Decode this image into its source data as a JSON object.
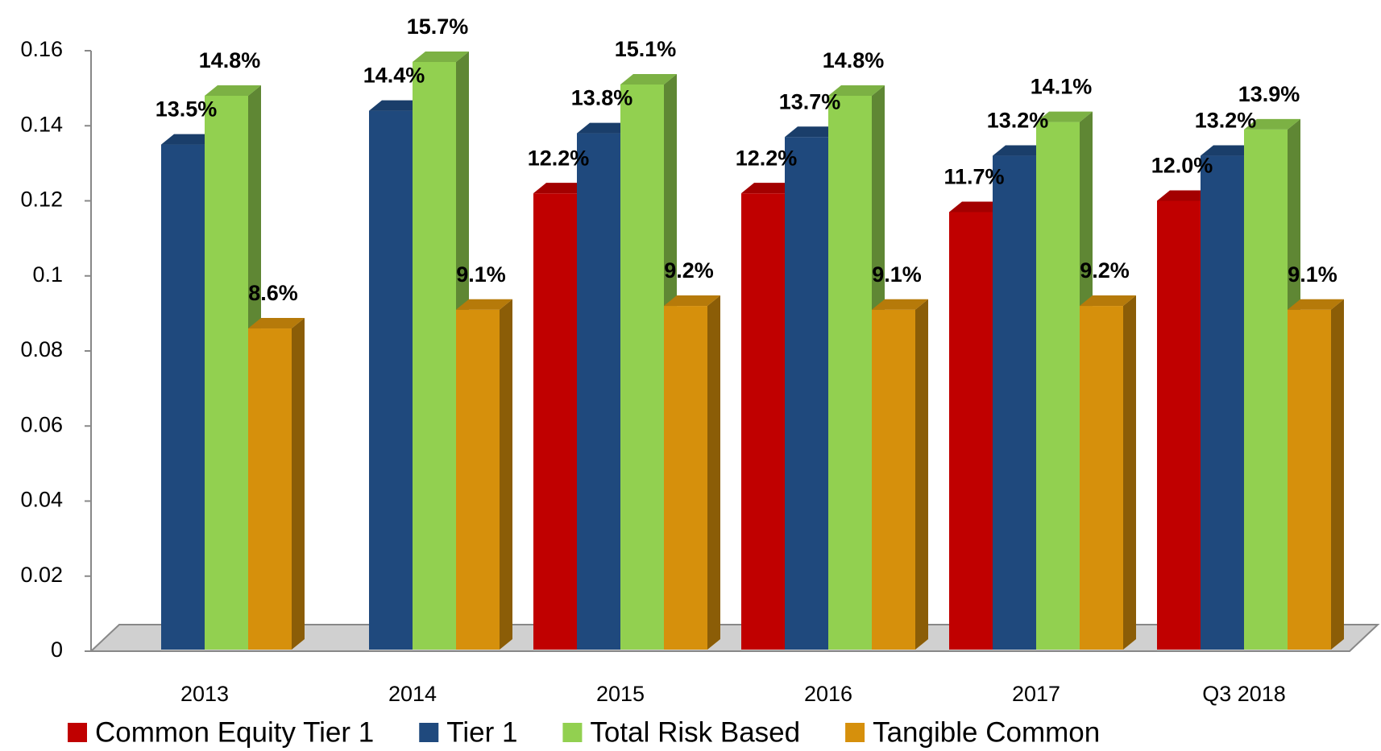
{
  "chart_data": {
    "type": "bar3d",
    "categories": [
      "2013",
      "2014",
      "2015",
      "2016",
      "2017",
      "Q3 2018"
    ],
    "series": [
      {
        "name": "Common Equity Tier 1",
        "color": "#c00000",
        "values": [
          null,
          null,
          0.122,
          0.122,
          0.117,
          0.12
        ],
        "value_labels": [
          null,
          null,
          "12.2%",
          "12.2%",
          "11.7%",
          "12.0%"
        ]
      },
      {
        "name": "Tier 1",
        "color": "#1f497d",
        "values": [
          0.135,
          0.144,
          0.138,
          0.137,
          0.132,
          0.132
        ],
        "value_labels": [
          "13.5%",
          "14.4%",
          "13.8%",
          "13.7%",
          "13.2%",
          "13.2%"
        ]
      },
      {
        "name": "Total Risk Based",
        "color": "#92d050",
        "values": [
          0.148,
          0.157,
          0.151,
          0.148,
          0.141,
          0.139
        ],
        "value_labels": [
          "14.8%",
          "15.7%",
          "15.1%",
          "14.8%",
          "14.1%",
          "13.9%"
        ]
      },
      {
        "name": "Tangible Common",
        "color": "#d6900c",
        "values": [
          0.086,
          0.091,
          0.092,
          0.091,
          0.092,
          0.091
        ],
        "value_labels": [
          "8.6%",
          "9.1%",
          "9.2%",
          "9.1%",
          "9.2%",
          "9.1%"
        ]
      }
    ],
    "ylim": [
      0,
      0.16
    ],
    "yticks": [
      0,
      0.02,
      0.04,
      0.06,
      0.08,
      0.1,
      0.12,
      0.14,
      0.16
    ],
    "legend": "bottom"
  }
}
